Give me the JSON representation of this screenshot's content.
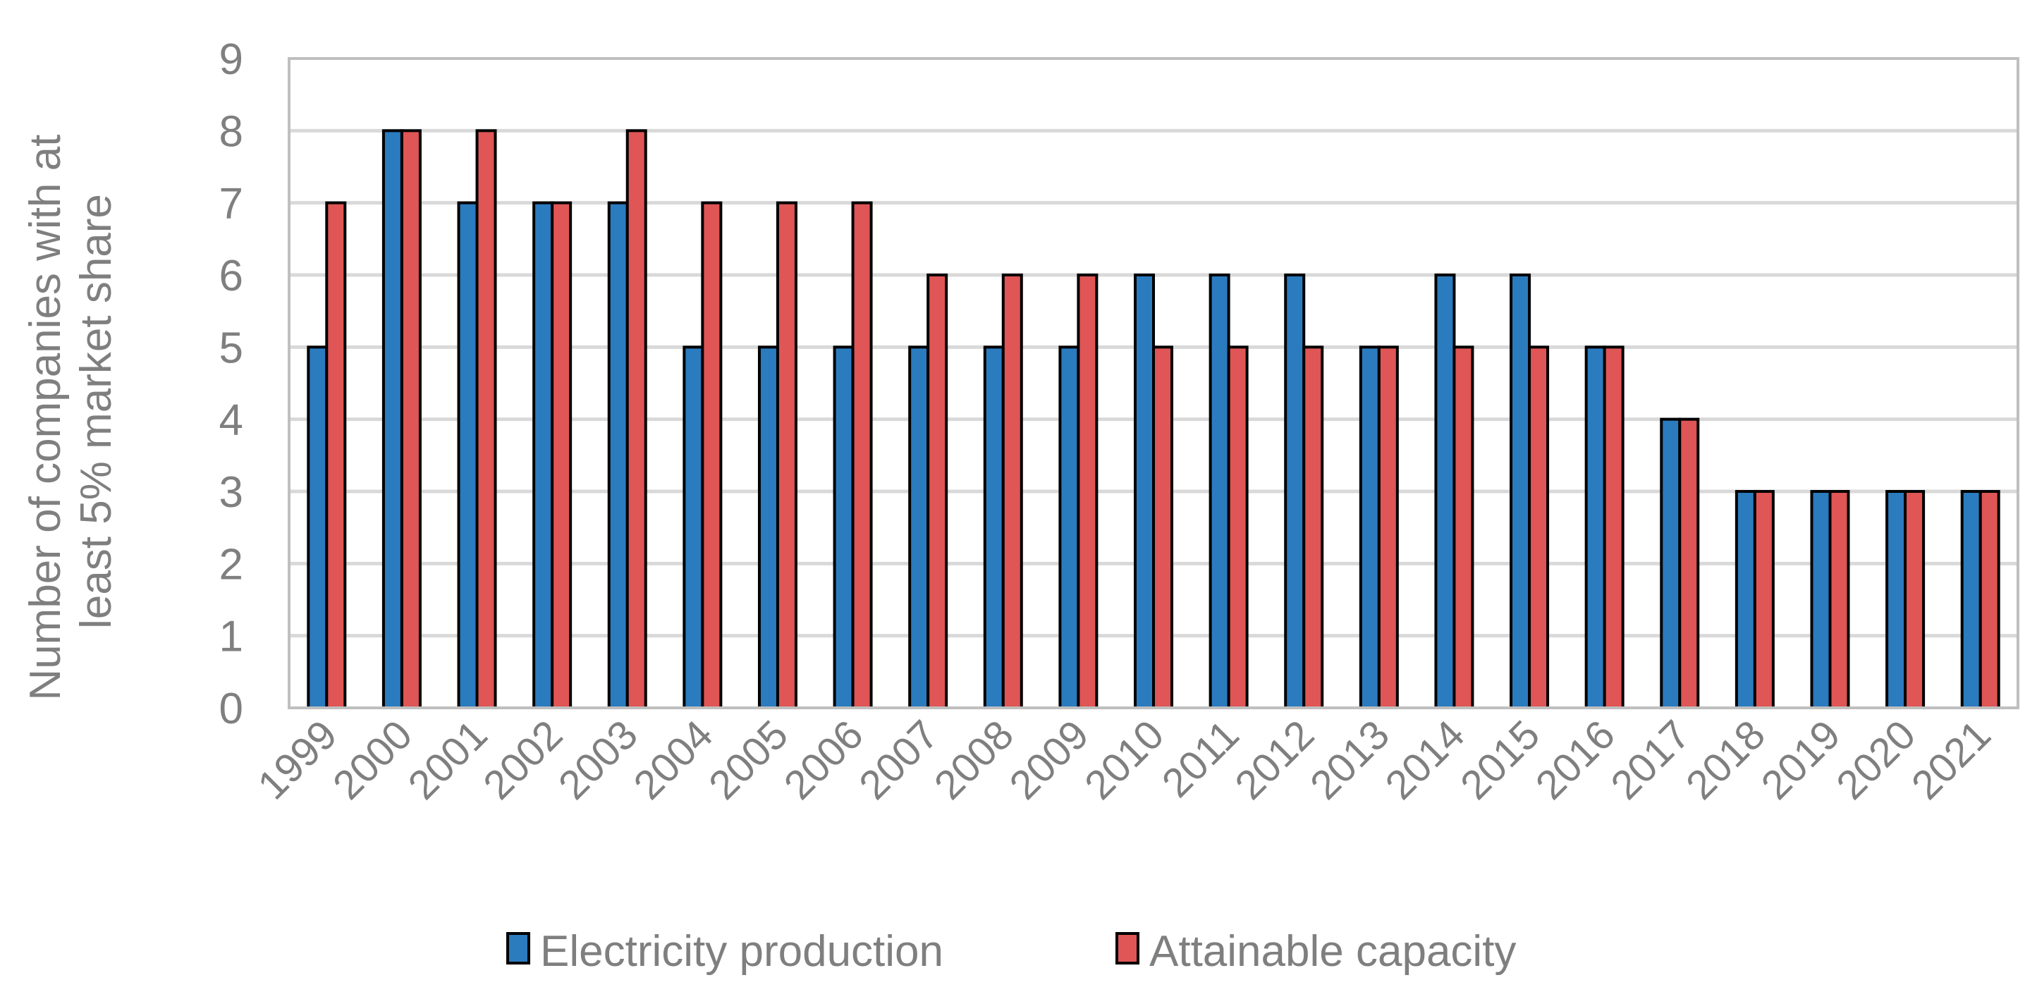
{
  "chart_data": {
    "type": "bar",
    "title": "",
    "xlabel": "",
    "ylabel_lines": [
      "Number of companies with at",
      "least 5% market share"
    ],
    "ylim": [
      0,
      9
    ],
    "yticks": [
      0,
      1,
      2,
      3,
      4,
      5,
      6,
      7,
      8,
      9
    ],
    "grid": true,
    "legend_position": "bottom-center",
    "categories": [
      "1999",
      "2000",
      "2001",
      "2002",
      "2003",
      "2004",
      "2005",
      "2006",
      "2007",
      "2008",
      "2009",
      "2010",
      "2011",
      "2012",
      "2013",
      "2014",
      "2015",
      "2016",
      "2017",
      "2018",
      "2019",
      "2020",
      "2021"
    ],
    "series": [
      {
        "name": "Electricity production",
        "color": "#2b7bbf",
        "values": [
          5,
          8,
          7,
          7,
          7,
          5,
          5,
          5,
          5,
          5,
          5,
          6,
          6,
          6,
          5,
          6,
          6,
          5,
          4,
          3,
          3,
          3,
          3
        ]
      },
      {
        "name": "Attainable capacity",
        "color": "#e05555",
        "values": [
          7,
          8,
          8,
          7,
          8,
          7,
          7,
          7,
          6,
          6,
          6,
          5,
          5,
          5,
          5,
          5,
          5,
          5,
          4,
          3,
          3,
          3,
          3
        ]
      }
    ],
    "colors": {
      "grid": "#d9d9d9",
      "text": "#7f7f7f",
      "bar_outline": "#000000",
      "plot_border": "#bfbfbf"
    }
  }
}
